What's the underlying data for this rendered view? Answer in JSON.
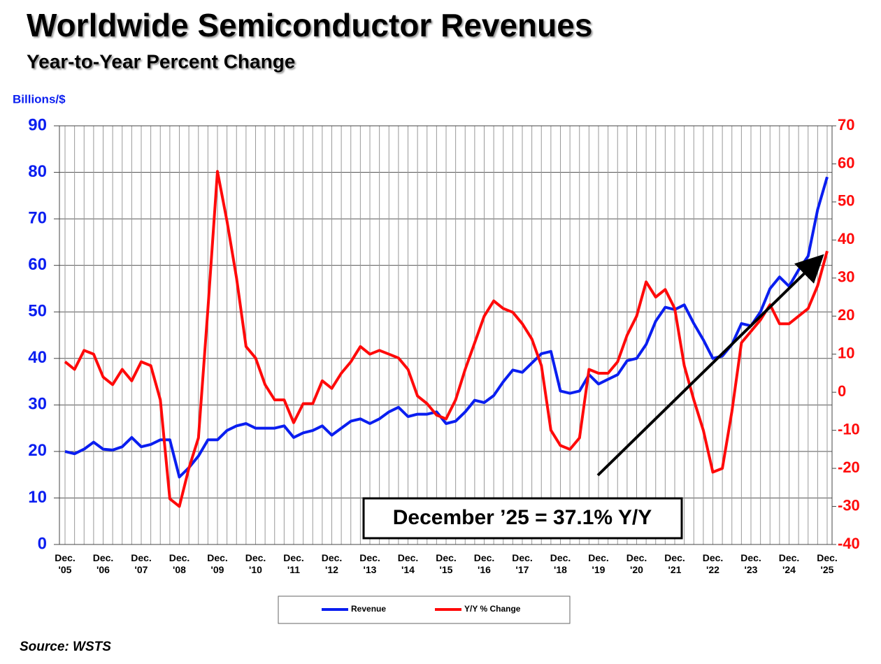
{
  "chart_data": {
    "type": "line",
    "title": "Worldwide Semiconductor Revenues",
    "subtitle": "Year-to-Year Percent Change",
    "y_label": "Billions/$",
    "annotation": "December ’25 = 37.1% Y/Y",
    "source": "Source: WSTS",
    "categories": [
      "Dec. '05",
      null,
      null,
      null,
      "Dec. '06",
      null,
      null,
      null,
      "Dec. '07",
      null,
      null,
      null,
      "Dec. '08",
      null,
      null,
      null,
      "Dec. '09",
      null,
      null,
      null,
      "Dec. '10",
      null,
      null,
      null,
      "Dec. '11",
      null,
      null,
      null,
      "Dec. '12",
      null,
      null,
      null,
      "Dec. '13",
      null,
      null,
      null,
      "Dec. '14",
      null,
      null,
      null,
      "Dec. '15",
      null,
      null,
      null,
      "Dec. '16",
      null,
      null,
      null,
      "Dec. '17",
      null,
      null,
      null,
      "Dec. '18",
      null,
      null,
      null,
      "Dec. '19",
      null,
      null,
      null,
      "Dec. '20",
      null,
      null,
      null,
      "Dec. '21",
      null,
      null,
      null,
      "Dec. '22",
      null,
      null,
      null,
      "Dec. '23",
      null,
      null,
      null,
      "Dec. '24",
      null,
      null,
      null,
      "Dec. '25"
    ],
    "series": [
      {
        "name": "Revenue",
        "color": "#0a1ef0",
        "values": [
          20,
          19.5,
          20.5,
          22,
          20.5,
          20.3,
          21,
          23,
          21,
          21.5,
          22.5,
          22.5,
          14.5,
          16.5,
          19,
          22.5,
          22.5,
          24.5,
          25.5,
          26,
          25,
          25,
          25,
          25.5,
          23,
          24,
          24.5,
          25.5,
          23.5,
          25,
          26.5,
          27,
          26,
          27,
          28.5,
          29.5,
          27.5,
          28,
          28,
          28.5,
          26,
          26.5,
          28.5,
          31,
          30.5,
          32,
          35,
          37.5,
          37,
          39,
          41,
          41.5,
          33,
          32.5,
          33,
          36.5,
          34.5,
          35.5,
          36.5,
          39.5,
          40,
          43,
          48,
          51,
          50.5,
          51.5,
          47.5,
          44,
          40,
          40.5,
          43,
          47.5,
          47,
          50,
          55,
          57.5,
          55.5,
          59,
          62,
          72,
          79
        ]
      },
      {
        "name": "Y/Y % Change",
        "color": "#ff0a0a",
        "axis": "y2",
        "values": [
          8,
          6,
          11,
          10,
          4,
          2,
          6,
          3,
          8,
          7,
          -2,
          -28,
          -30,
          -20,
          -12,
          22,
          58,
          45,
          30,
          12,
          9,
          2,
          -2,
          -2,
          -8,
          -3,
          -3,
          3,
          1,
          5,
          8,
          12,
          10,
          11,
          10,
          9,
          6,
          -1,
          -3,
          -6,
          -7,
          -2,
          6,
          13,
          20,
          24,
          22,
          21,
          18,
          14,
          7,
          -10,
          -14,
          -15,
          -12,
          6,
          5,
          5,
          8,
          15,
          20,
          29,
          25,
          27,
          22,
          7,
          -2,
          -10,
          -21,
          -20,
          -5,
          13,
          16,
          19,
          23,
          18,
          18,
          20,
          22,
          28,
          37.1
        ]
      }
    ],
    "ylim": [
      0,
      90
    ],
    "yticks": [
      0,
      10,
      20,
      30,
      40,
      50,
      60,
      70,
      80,
      90
    ],
    "y2lim": [
      -40,
      70
    ],
    "y2ticks": [
      -40,
      -30,
      -20,
      -10,
      0,
      10,
      20,
      30,
      40,
      50,
      60,
      70
    ],
    "grid": true
  }
}
